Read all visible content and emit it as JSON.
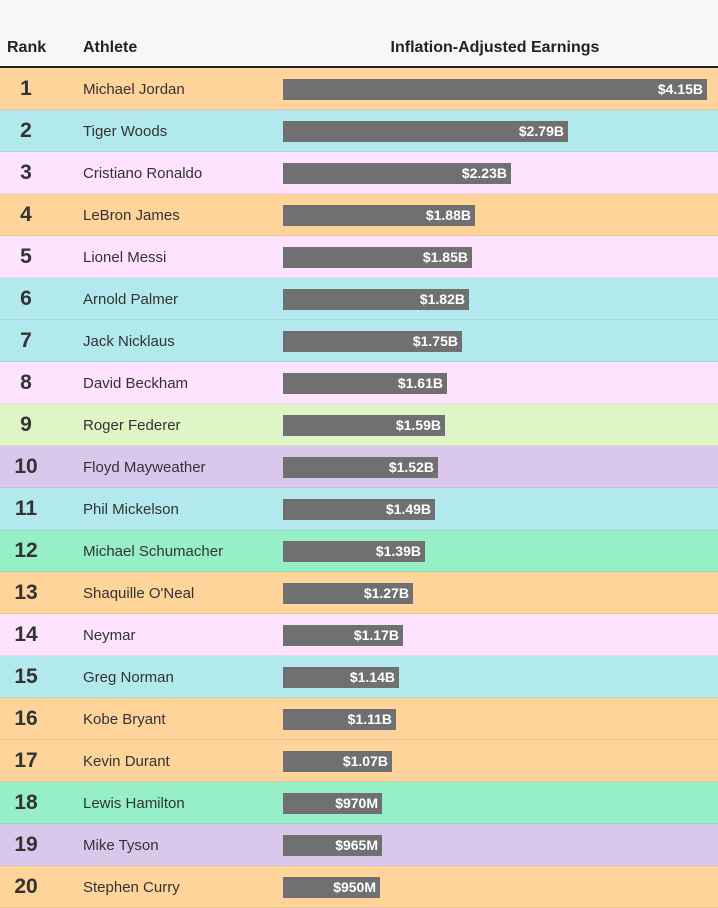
{
  "headers": {
    "rank": "Rank",
    "athlete": "Athlete",
    "earnings": "Inflation-Adjusted Earnings"
  },
  "chart_data": {
    "type": "bar",
    "orientation": "horizontal",
    "xlabel": "Inflation-Adjusted Earnings",
    "units": "billions USD",
    "rows": [
      {
        "rank": "1",
        "athlete": "Michael Jordan",
        "value": 4.15,
        "label": "$4.15B",
        "color": "#fed49b"
      },
      {
        "rank": "2",
        "athlete": "Tiger Woods",
        "value": 2.79,
        "label": "$2.79B",
        "color": "#b2e9ec"
      },
      {
        "rank": "3",
        "athlete": "Cristiano Ronaldo",
        "value": 2.23,
        "label": "$2.23B",
        "color": "#fde3fd"
      },
      {
        "rank": "4",
        "athlete": "LeBron James",
        "value": 1.88,
        "label": "$1.88B",
        "color": "#fed49b"
      },
      {
        "rank": "5",
        "athlete": "Lionel Messi",
        "value": 1.85,
        "label": "$1.85B",
        "color": "#fde3fd"
      },
      {
        "rank": "6",
        "athlete": "Arnold Palmer",
        "value": 1.82,
        "label": "$1.82B",
        "color": "#b2e9ec"
      },
      {
        "rank": "7",
        "athlete": "Jack Nicklaus",
        "value": 1.75,
        "label": "$1.75B",
        "color": "#b2e9ec"
      },
      {
        "rank": "8",
        "athlete": "David Beckham",
        "value": 1.61,
        "label": "$1.61B",
        "color": "#fde3fd"
      },
      {
        "rank": "9",
        "athlete": "Roger Federer",
        "value": 1.59,
        "label": "$1.59B",
        "color": "#e0f5c6"
      },
      {
        "rank": "10",
        "athlete": "Floyd Mayweather",
        "value": 1.52,
        "label": "$1.52B",
        "color": "#d9c8ec"
      },
      {
        "rank": "11",
        "athlete": "Phil Mickelson",
        "value": 1.49,
        "label": "$1.49B",
        "color": "#b2e9ec"
      },
      {
        "rank": "12",
        "athlete": "Michael Schumacher",
        "value": 1.39,
        "label": "$1.39B",
        "color": "#97efc8"
      },
      {
        "rank": "13",
        "athlete": "Shaquille O'Neal",
        "value": 1.27,
        "label": "$1.27B",
        "color": "#fed49b"
      },
      {
        "rank": "14",
        "athlete": "Neymar",
        "value": 1.17,
        "label": "$1.17B",
        "color": "#fde3fd"
      },
      {
        "rank": "15",
        "athlete": "Greg Norman",
        "value": 1.14,
        "label": "$1.14B",
        "color": "#b2e9ec"
      },
      {
        "rank": "16",
        "athlete": "Kobe Bryant",
        "value": 1.11,
        "label": "$1.11B",
        "color": "#fed49b"
      },
      {
        "rank": "17",
        "athlete": "Kevin Durant",
        "value": 1.07,
        "label": "$1.07B",
        "color": "#fed49b"
      },
      {
        "rank": "18",
        "athlete": "Lewis Hamilton",
        "value": 0.97,
        "label": "$970M",
        "color": "#97efc8"
      },
      {
        "rank": "19",
        "athlete": "Mike Tyson",
        "value": 0.965,
        "label": "$965M",
        "color": "#d9c8ec"
      },
      {
        "rank": "20",
        "athlete": "Stephen Curry",
        "value": 0.95,
        "label": "$950M",
        "color": "#fed49b"
      }
    ],
    "xlim": [
      0,
      4.15
    ],
    "grid": false
  }
}
